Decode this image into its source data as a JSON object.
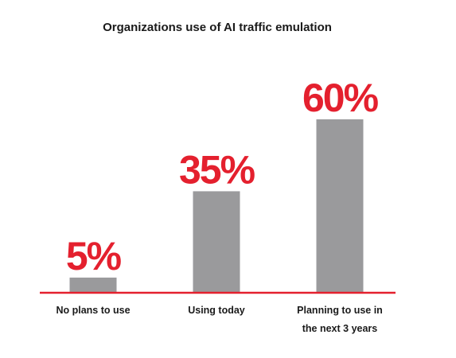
{
  "chart_data": {
    "type": "bar",
    "title": "Organizations use of AI traffic emulation",
    "categories": [
      [
        "No plans to use"
      ],
      [
        "Using today"
      ],
      [
        "Planning to use in",
        "the next 3 years"
      ]
    ],
    "values": [
      5,
      35,
      60
    ],
    "value_labels": [
      "5%",
      "35%",
      "60%"
    ],
    "ylim": [
      0,
      60
    ],
    "grid": false,
    "legend": "none",
    "colors": {
      "bar": "#9a9a9c",
      "value_label": "#e4202e",
      "baseline": "#e4202e",
      "text": "#1a1a1a"
    }
  }
}
